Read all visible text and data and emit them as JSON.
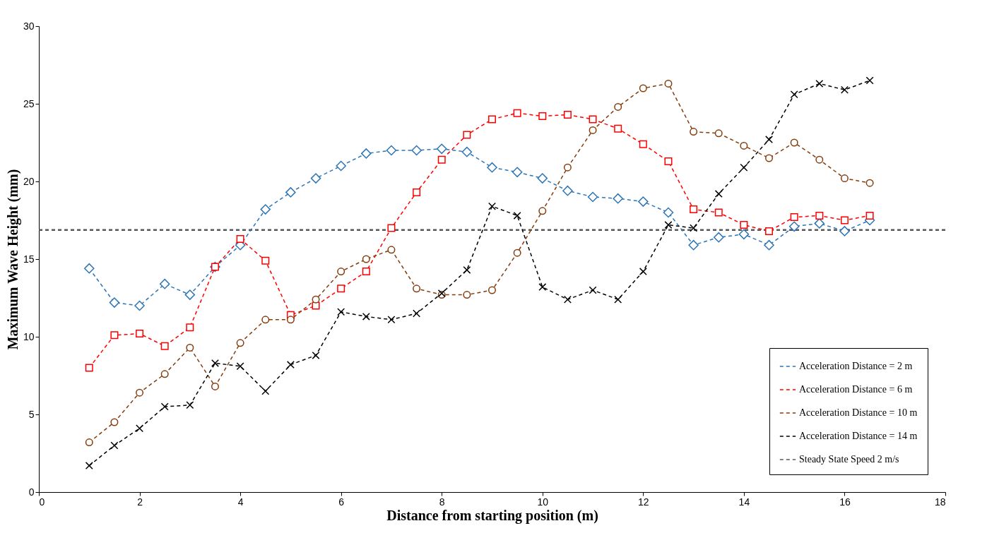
{
  "chart_data": {
    "type": "line",
    "xlabel": "Distance from starting position   (m)",
    "ylabel": "Maximum Wave Height   (mm)",
    "x": [
      1,
      1.5,
      2,
      2.5,
      3,
      3.5,
      4,
      4.5,
      5,
      5.5,
      6,
      6.5,
      7,
      7.5,
      8,
      8.5,
      9,
      9.5,
      10,
      10.5,
      11,
      11.5,
      12,
      12.5,
      13,
      13.5,
      14,
      14.5,
      15,
      15.5,
      16,
      16.5
    ],
    "series": [
      {
        "name": "Acceleration Distance = 2 m",
        "color": "#2e75b6",
        "marker": "diamond",
        "values": [
          14.4,
          12.2,
          12.0,
          13.4,
          12.7,
          14.5,
          15.9,
          18.2,
          19.3,
          20.2,
          21.0,
          21.8,
          22.0,
          22.0,
          22.1,
          21.9,
          20.9,
          20.6,
          20.2,
          19.4,
          19.0,
          18.9,
          18.7,
          18.0,
          15.9,
          16.4,
          16.6,
          15.9,
          17.1,
          17.3,
          16.8,
          17.5
        ]
      },
      {
        "name": "Acceleration Distance = 6 m",
        "color": "#ff0000",
        "marker": "square",
        "values": [
          8.0,
          10.1,
          10.2,
          9.4,
          10.6,
          14.5,
          16.3,
          14.9,
          11.4,
          12.0,
          13.1,
          14.2,
          17.0,
          19.3,
          21.4,
          23.0,
          24.0,
          24.4,
          24.2,
          24.3,
          24.0,
          23.4,
          22.4,
          21.3,
          18.2,
          18.0,
          17.2,
          16.8,
          17.7,
          17.8,
          17.5,
          17.8
        ]
      },
      {
        "name": "Acceleration Distance = 10 m",
        "color": "#843c0c",
        "marker": "circle",
        "values": [
          3.2,
          4.5,
          6.4,
          7.6,
          9.3,
          6.8,
          9.6,
          11.1,
          11.1,
          12.4,
          14.2,
          15.0,
          15.6,
          13.1,
          12.7,
          12.7,
          13.0,
          15.4,
          18.1,
          20.9,
          23.3,
          24.8,
          26.0,
          26.3,
          23.2,
          23.1,
          22.3,
          21.5,
          22.5,
          21.4,
          20.2,
          19.9
        ]
      },
      {
        "name": "Acceleration Distance = 14 m",
        "color": "#000000",
        "marker": "cross",
        "values": [
          1.7,
          3.0,
          4.1,
          5.5,
          5.6,
          8.3,
          8.1,
          6.5,
          8.2,
          8.8,
          11.6,
          11.3,
          11.1,
          11.5,
          12.8,
          14.3,
          18.4,
          17.8,
          13.2,
          12.4,
          13.0,
          12.4,
          14.2,
          17.2,
          17.0,
          19.2,
          20.9,
          22.7,
          25.6,
          26.3,
          25.9,
          26.5
        ]
      }
    ],
    "ref_lines": [
      {
        "axis": "y",
        "value": 16.87,
        "label": "Steady State Speed 2 m/s",
        "color": "#595959",
        "line_style": "dashed"
      }
    ],
    "xlim": [
      0,
      18
    ],
    "xticks": [
      0,
      2,
      4,
      6,
      8,
      10,
      12,
      14,
      16,
      18
    ],
    "ylim": [
      0,
      30
    ],
    "yticks": [
      0,
      5,
      10,
      15,
      20,
      25,
      30
    ],
    "grid": false,
    "legend": "bottom right",
    "line_style": "dashed"
  }
}
